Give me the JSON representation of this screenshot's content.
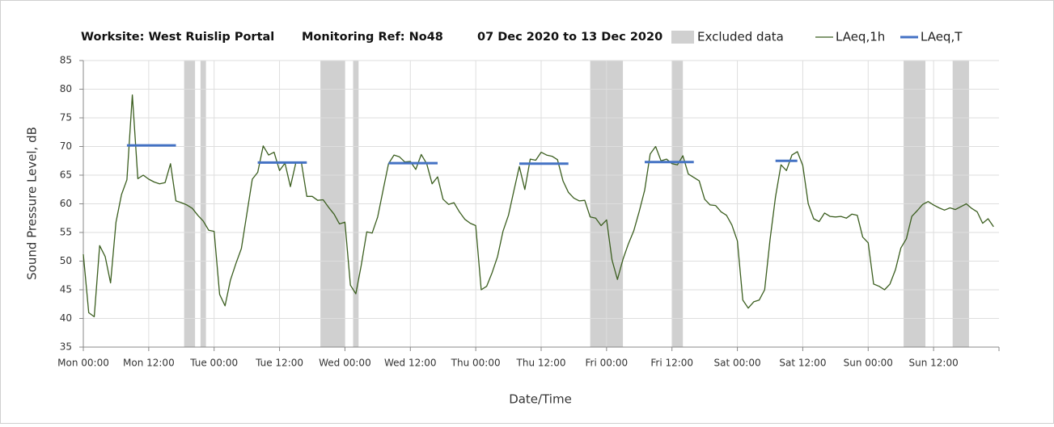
{
  "chart_data": {
    "type": "line",
    "title": "Worksite: West Ruislip Portal",
    "monitoring_ref": "Monitoring Ref: No48",
    "period": "07 Dec 2020 to 13 Dec 2020",
    "x_label": "Date/Time",
    "y_label": "Sound Pressure Level, dB",
    "xlim": [
      0,
      168
    ],
    "ylim": [
      35,
      85
    ],
    "yticks": [
      35,
      40,
      45,
      50,
      55,
      60,
      65,
      70,
      75,
      80,
      85
    ],
    "xticks": [
      {
        "value": 0,
        "label": "Mon 00:00"
      },
      {
        "value": 12,
        "label": "Mon 12:00"
      },
      {
        "value": 24,
        "label": "Tue 00:00"
      },
      {
        "value": 36,
        "label": "Tue 12:00"
      },
      {
        "value": 48,
        "label": "Wed 00:00"
      },
      {
        "value": 60,
        "label": "Wed 12:00"
      },
      {
        "value": 72,
        "label": "Thu 00:00"
      },
      {
        "value": 84,
        "label": "Thu 12:00"
      },
      {
        "value": 96,
        "label": "Fri 00:00"
      },
      {
        "value": 108,
        "label": "Fri 12:00"
      },
      {
        "value": 120,
        "label": "Sat 00:00"
      },
      {
        "value": 132,
        "label": "Sat 12:00"
      },
      {
        "value": 144,
        "label": "Sun 00:00"
      },
      {
        "value": 156,
        "label": "Sun 12:00"
      }
    ],
    "grid": true,
    "excluded": {
      "name": "Excluded data",
      "color": "#d0d0d0",
      "ranges": [
        [
          18.5,
          20.5
        ],
        [
          21.5,
          22.5
        ],
        [
          43.5,
          48
        ],
        [
          49.5,
          50.5
        ],
        [
          93,
          99
        ],
        [
          108,
          110
        ],
        [
          150.5,
          154.5
        ],
        [
          159.5,
          162.5
        ]
      ]
    },
    "series": [
      {
        "name": "LAeq,1h",
        "color": "#3b5e1f",
        "width": 1.3,
        "x": [
          0,
          1,
          2,
          3,
          4,
          5,
          6,
          7,
          8,
          9,
          10,
          11,
          12,
          13,
          14,
          15,
          16,
          17,
          18,
          19,
          20,
          21,
          22,
          23,
          24,
          25,
          26,
          27,
          28,
          29,
          30,
          31,
          32,
          33,
          34,
          35,
          36,
          37,
          38,
          39,
          40,
          41,
          42,
          43,
          44,
          45,
          46,
          47,
          48,
          49,
          50,
          51,
          52,
          53,
          54,
          55,
          56,
          57,
          58,
          59,
          60,
          61,
          62,
          63,
          64,
          65,
          66,
          67,
          68,
          69,
          70,
          71,
          72,
          73,
          74,
          75,
          76,
          77,
          78,
          79,
          80,
          81,
          82,
          83,
          84,
          85,
          86,
          87,
          88,
          89,
          90,
          91,
          92,
          93,
          94,
          95,
          96,
          97,
          98,
          99,
          100,
          101,
          102,
          103,
          104,
          105,
          106,
          107,
          108,
          109,
          110,
          111,
          112,
          113,
          114,
          115,
          116,
          117,
          118,
          119,
          120,
          121,
          122,
          123,
          124,
          125,
          126,
          127,
          128,
          129,
          130,
          131,
          132,
          133,
          134,
          135,
          136,
          137,
          138,
          139,
          140,
          141,
          142,
          143,
          144,
          145,
          146,
          147,
          148,
          149,
          150,
          151,
          152,
          153,
          154,
          155,
          156,
          157,
          158,
          159,
          160,
          161,
          162,
          163,
          164,
          165,
          166,
          167
        ],
        "values": [
          51.2,
          41,
          40.3,
          52.7,
          50.8,
          46.2,
          56.8,
          61.6,
          64.2,
          79,
          64.4,
          65,
          64.3,
          63.8,
          63.5,
          63.7,
          67,
          60.5,
          60.2,
          59.8,
          59.2,
          58,
          57,
          55.4,
          55.2,
          44.2,
          42.2,
          46.7,
          49.6,
          52.2,
          58.2,
          64.3,
          65.5,
          70.1,
          68.5,
          69,
          65.8,
          67.1,
          63,
          67.2,
          67.3,
          61.3,
          61.3,
          60.6,
          60.7,
          59.4,
          58.2,
          56.5,
          56.8,
          45.8,
          44.3,
          49.3,
          55.1,
          54.9,
          57.7,
          62.4,
          67,
          68.5,
          68.2,
          67.3,
          67.4,
          66,
          68.6,
          67,
          63.5,
          64.7,
          60.8,
          59.9,
          60.2,
          58.6,
          57.3,
          56.6,
          56.2,
          45,
          45.6,
          48,
          50.8,
          55.2,
          58,
          62.3,
          66.5,
          62.5,
          67.8,
          67.6,
          69,
          68.5,
          68.3,
          67.7,
          64,
          62,
          61,
          60.5,
          60.6,
          57.7,
          57.5,
          56.2,
          57.2,
          50.2,
          46.8,
          50.3,
          53,
          55.3,
          58.7,
          62.4,
          68.7,
          70,
          67.5,
          67.8,
          67,
          66.8,
          68.4,
          65.2,
          64.6,
          64,
          60.8,
          59.8,
          59.7,
          58.6,
          58,
          56.3,
          53.5,
          43.2,
          41.8,
          42.9,
          43.2,
          45,
          53.8,
          61.2,
          66.8,
          65.8,
          68.5,
          69.1,
          66.7,
          60,
          57.4,
          56.9,
          58.4,
          57.8,
          57.7,
          57.8,
          57.5,
          58.2,
          58,
          54.2,
          53.2,
          46,
          45.6,
          45,
          46,
          48.5,
          52.3,
          53.9,
          57.8,
          58.8,
          59.9,
          60.4,
          59.8,
          59.3,
          58.9,
          59.3,
          59,
          59.5,
          60,
          59.2,
          58.6,
          56.6,
          57.4,
          56
        ]
      },
      {
        "name": "LAeq,T",
        "color": "#4472c4",
        "width": 3,
        "x": [
          8,
          17,
          null,
          32,
          41,
          null,
          56,
          65,
          null,
          80,
          89,
          null,
          103,
          112,
          null,
          127,
          131
        ],
        "values": [
          70.2,
          70.2,
          null,
          67.2,
          67.2,
          null,
          67.1,
          67.1,
          null,
          67,
          67,
          null,
          67.3,
          67.3,
          null,
          67.5,
          67.5
        ]
      }
    ]
  }
}
